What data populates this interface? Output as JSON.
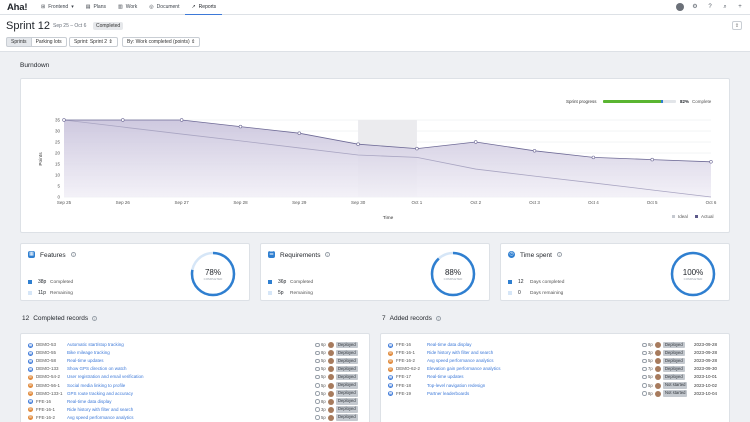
{
  "nav": {
    "logo": "Aha!",
    "items": [
      {
        "label": "Frontend",
        "icon": "grid-icon",
        "caret": "▾"
      },
      {
        "label": "Plans",
        "icon": "plans-icon"
      },
      {
        "label": "Work",
        "icon": "work-icon"
      },
      {
        "label": "Document",
        "icon": "document-icon"
      },
      {
        "label": "Reports",
        "icon": "reports-icon",
        "active": true
      }
    ]
  },
  "header": {
    "title": "Sprint 12",
    "date_range": "Sep 25 – Oct 6",
    "status": "Completed",
    "tabs": [
      "Sprints",
      "Parking lots"
    ],
    "filter_sprint": "Sprint: Sprint 2 ⇕",
    "filter_by": "By: Work completed (points) ⇕"
  },
  "burndown": {
    "section_title": "Burndown",
    "progress_label": "Sprint progress",
    "progress_pct": 82,
    "progress_text": "82%",
    "progress_suffix": "Complete",
    "ylabel": "Points",
    "xlabel": "Time",
    "legend_ideal": "Ideal",
    "legend_actual": "Actual"
  },
  "chart_data": {
    "type": "area",
    "title": "",
    "xlabel": "Time",
    "ylabel": "Points",
    "ylim": [
      0,
      35
    ],
    "yticks": [
      0,
      5,
      10,
      15,
      20,
      25,
      30,
      35
    ],
    "categories": [
      "Sep 25",
      "Sep 26",
      "Sep 27",
      "Sep 28",
      "Sep 29",
      "Sep 30",
      "Oct 1",
      "Oct 2",
      "Oct 3",
      "Oct 4",
      "Oct 5",
      "Oct 6"
    ],
    "series": [
      {
        "name": "Actual",
        "values": [
          35,
          35,
          35,
          32,
          29,
          24,
          22,
          25,
          21,
          18,
          17,
          16
        ]
      },
      {
        "name": "Ideal",
        "values": [
          35,
          31.8,
          28.6,
          25.5,
          22.3,
          19.1,
          18,
          12.7,
          9.5,
          6.4,
          3.2,
          0
        ]
      }
    ],
    "grid": true,
    "legend": "bottom-right"
  },
  "summary": [
    {
      "title": "Features",
      "icon": "features-icon",
      "icon_glyph": "▦",
      "color": "#2f7fd0",
      "pct": 78,
      "pct_text": "78%",
      "pct_label": "COMPLETED",
      "done_value": "38p",
      "done_label": "Completed",
      "rest_value": "11p",
      "rest_label": "Remaining"
    },
    {
      "title": "Requirements",
      "icon": "requirements-icon",
      "icon_glyph": "☰",
      "color": "#2f7fd0",
      "pct": 88,
      "pct_text": "88%",
      "pct_label": "COMPLETED",
      "done_value": "36p",
      "done_label": "Completed",
      "rest_value": "5p",
      "rest_label": "Remaining"
    },
    {
      "title": "Time spent",
      "icon": "clock-icon",
      "icon_glyph": "◷",
      "color": "#2f7fd0",
      "pct": 100,
      "pct_text": "100%",
      "pct_label": "COMPLETED",
      "done_value": "12",
      "done_label": "Days completed",
      "rest_value": "0",
      "rest_label": "Days remaining"
    }
  ],
  "completed": {
    "count": "12",
    "title": "Completed records",
    "rows": [
      {
        "id": "DEMO-53",
        "name": "Automatic start/stop tracking",
        "pts": "6p",
        "status": "Deployed",
        "kind": "feature"
      },
      {
        "id": "DEMO-55",
        "name": "Bike mileage tracking",
        "pts": "8p",
        "status": "Deployed",
        "kind": "feature"
      },
      {
        "id": "DEMO-58",
        "name": "Real-time updates",
        "pts": "5p",
        "status": "Deployed",
        "kind": "feature"
      },
      {
        "id": "DEMO-133",
        "name": "Show GPS direction on watch",
        "pts": "5p",
        "status": "Deployed",
        "kind": "feature"
      },
      {
        "id": "DEMO-54-2",
        "name": "User registration and email verification",
        "pts": "5p",
        "status": "Deployed",
        "kind": "requirement"
      },
      {
        "id": "DEMO-56-1",
        "name": "Social media linking to profile",
        "pts": "5p",
        "status": "Deployed",
        "kind": "requirement"
      },
      {
        "id": "DEMO-133-1",
        "name": "GPS route tracking and accuracy",
        "pts": "5p",
        "status": "Deployed",
        "kind": "requirement"
      },
      {
        "id": "FFE-16",
        "name": "Real-time data display",
        "pts": "8p",
        "status": "Deployed",
        "kind": "feature"
      },
      {
        "id": "FFE-16-1",
        "name": "Ride history with filter and search",
        "pts": "3p",
        "status": "Deployed",
        "kind": "requirement"
      },
      {
        "id": "FFE-16-2",
        "name": "Avg speed performance analytics",
        "pts": "5p",
        "status": "Deployed",
        "kind": "requirement"
      }
    ]
  },
  "added": {
    "count": "7",
    "title": "Added records",
    "rows": [
      {
        "id": "FFE-16",
        "name": "Real-time data display",
        "pts": "8p",
        "status": "Deployed",
        "date": "2023-09-28",
        "kind": "feature"
      },
      {
        "id": "FFE-16-1",
        "name": "Ride history with filter and search",
        "pts": "3p",
        "status": "Deployed",
        "date": "2023-09-28",
        "kind": "requirement"
      },
      {
        "id": "FFE-16-2",
        "name": "Avg speed performance analytics",
        "pts": "5p",
        "status": "Deployed",
        "date": "2023-09-28",
        "kind": "requirement"
      },
      {
        "id": "DEMO-62-2",
        "name": "Elevation gain performance analytics",
        "pts": "7p",
        "status": "Deployed",
        "date": "2023-09-30",
        "kind": "requirement"
      },
      {
        "id": "FFE-17",
        "name": "Real-time updates",
        "pts": "5p",
        "status": "Deployed",
        "date": "2023-10-01",
        "kind": "feature"
      },
      {
        "id": "FFE-18",
        "name": "Top-level navigation redesign",
        "pts": "5p",
        "status": "Not started",
        "date": "2023-10-02",
        "kind": "feature"
      },
      {
        "id": "FFE-19",
        "name": "Partner leaderboards",
        "pts": "8p",
        "status": "Not started",
        "date": "2023-10-04",
        "kind": "feature"
      }
    ]
  }
}
